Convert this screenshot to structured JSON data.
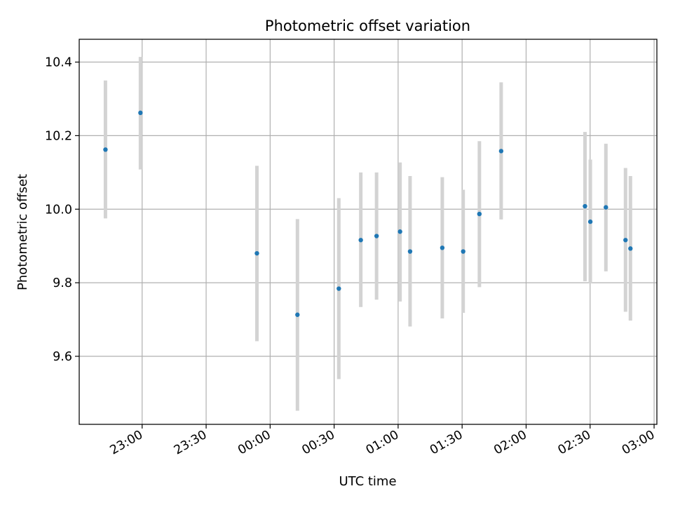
{
  "chart_data": {
    "type": "scatter",
    "title": "Photometric offset variation",
    "xlabel": "UTC time",
    "ylabel": "Photometric offset",
    "x_ticks": [
      {
        "t": 1380,
        "label": "23:00"
      },
      {
        "t": 1410,
        "label": "23:30"
      },
      {
        "t": 1440,
        "label": "00:00"
      },
      {
        "t": 1470,
        "label": "00:30"
      },
      {
        "t": 1500,
        "label": "01:00"
      },
      {
        "t": 1530,
        "label": "01:30"
      },
      {
        "t": 1560,
        "label": "02:00"
      },
      {
        "t": 1590,
        "label": "02:30"
      },
      {
        "t": 1620,
        "label": "03:00"
      }
    ],
    "y_ticks": [
      {
        "v": 9.6,
        "label": "9.6"
      },
      {
        "v": 9.8,
        "label": "9.8"
      },
      {
        "v": 10.0,
        "label": "10.0"
      },
      {
        "v": 10.2,
        "label": "10.2"
      },
      {
        "v": 10.4,
        "label": "10.4"
      }
    ],
    "xlim": [
      1350.5,
      1621.3
    ],
    "ylim": [
      9.415,
      10.462
    ],
    "grid": true,
    "colors": {
      "marker": "#1f77b4",
      "errorbar": "#d3d3d3",
      "grid": "#b0b0b0"
    },
    "points": [
      {
        "t": 1362.8,
        "y": 10.162,
        "lo": 9.975,
        "hi": 10.35
      },
      {
        "t": 1379.2,
        "y": 10.262,
        "lo": 10.108,
        "hi": 10.414
      },
      {
        "t": 1433.8,
        "y": 9.88,
        "lo": 9.641,
        "hi": 10.118
      },
      {
        "t": 1452.8,
        "y": 9.713,
        "lo": 9.452,
        "hi": 9.973
      },
      {
        "t": 1472.2,
        "y": 9.784,
        "lo": 9.538,
        "hi": 10.03
      },
      {
        "t": 1482.5,
        "y": 9.916,
        "lo": 9.734,
        "hi": 10.1
      },
      {
        "t": 1489.9,
        "y": 9.927,
        "lo": 9.754,
        "hi": 10.1
      },
      {
        "t": 1500.9,
        "y": 9.939,
        "lo": 9.749,
        "hi": 10.127
      },
      {
        "t": 1505.6,
        "y": 9.885,
        "lo": 9.681,
        "hi": 10.09
      },
      {
        "t": 1520.7,
        "y": 9.895,
        "lo": 9.703,
        "hi": 10.087
      },
      {
        "t": 1530.5,
        "y": 9.885,
        "lo": 9.718,
        "hi": 10.053
      },
      {
        "t": 1538.1,
        "y": 9.987,
        "lo": 9.788,
        "hi": 10.185
      },
      {
        "t": 1548.3,
        "y": 10.158,
        "lo": 9.972,
        "hi": 10.345
      },
      {
        "t": 1587.6,
        "y": 10.008,
        "lo": 9.804,
        "hi": 10.21
      },
      {
        "t": 1590.1,
        "y": 9.966,
        "lo": 9.798,
        "hi": 10.135
      },
      {
        "t": 1597.4,
        "y": 10.005,
        "lo": 9.831,
        "hi": 10.178
      },
      {
        "t": 1606.6,
        "y": 9.916,
        "lo": 9.721,
        "hi": 10.112
      },
      {
        "t": 1608.9,
        "y": 9.893,
        "lo": 9.697,
        "hi": 10.09
      }
    ]
  }
}
